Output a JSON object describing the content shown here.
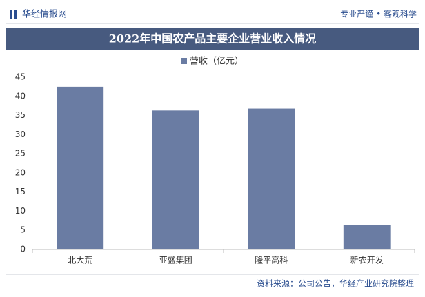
{
  "header": {
    "brand": "华经情报网",
    "slogan": "专业严谨 • 客观科学"
  },
  "chart_data": {
    "type": "bar",
    "title": "2022年中国农产品主要企业营业收入情况",
    "categories": [
      "北大荒",
      "亚盛集团",
      "隆平高科",
      "新农开发"
    ],
    "series": [
      {
        "name": "营收（亿元）",
        "color": "#6a7ca3",
        "values": [
          42.5,
          36.3,
          36.8,
          6.3
        ]
      }
    ],
    "ylim": [
      0,
      45
    ],
    "yticks": [
      0,
      5,
      10,
      15,
      20,
      25,
      30,
      35,
      40,
      45
    ],
    "grid": false
  },
  "footer": {
    "source": "资料来源：公司公告，华经产业研究院整理"
  }
}
